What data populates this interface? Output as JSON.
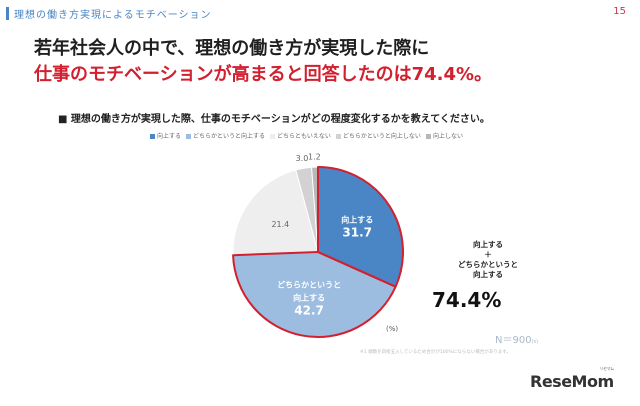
{
  "header": {
    "title": "理想の働き方実現によるモチベーション",
    "page_number": "15"
  },
  "headline": {
    "line1": "若年社会人の中で、理想の働き方が実現した際に",
    "line2": "仕事のモチベーションが高まると回答したのは74.4%。"
  },
  "question": "■ 理想の働き方が実現した際、仕事のモチベーションがどの程度変化するかを教えてください。",
  "callout": {
    "lines": [
      "向上する",
      "＋",
      "どちらかというと",
      "向上する"
    ],
    "total": "74.4%"
  },
  "unit": "(%)",
  "sample": {
    "text": "N＝900",
    "suffix": "(s)"
  },
  "footnote": "※1 端数を四捨五入しているため合計が100%にならない場合があります。",
  "logo": {
    "text": "ReseMom",
    "kana": "リセマム"
  },
  "chart_data": {
    "type": "pie",
    "title": "",
    "categories": [
      "向上する",
      "どちらかというと向上する",
      "どちらともいえない",
      "どちらかというと向上しない",
      "向上しない"
    ],
    "values": [
      31.7,
      42.7,
      21.4,
      3.0,
      1.2
    ],
    "slice_labels": [
      [
        "向上する",
        "31.7"
      ],
      [
        "どちらかというと",
        "向上する",
        "42.7"
      ],
      [
        "21.4"
      ],
      [
        "3.0"
      ],
      [
        "1.2"
      ]
    ],
    "colors": [
      "#4a86c5",
      "#9dbde0",
      "#eeeeee",
      "#d2d2d2",
      "#b8b8b8"
    ],
    "highlight_color": "#d2202f",
    "highlight_slices": [
      0,
      1
    ],
    "start_angle_deg": 0,
    "direction": "clockwise",
    "legend_position": "top"
  }
}
